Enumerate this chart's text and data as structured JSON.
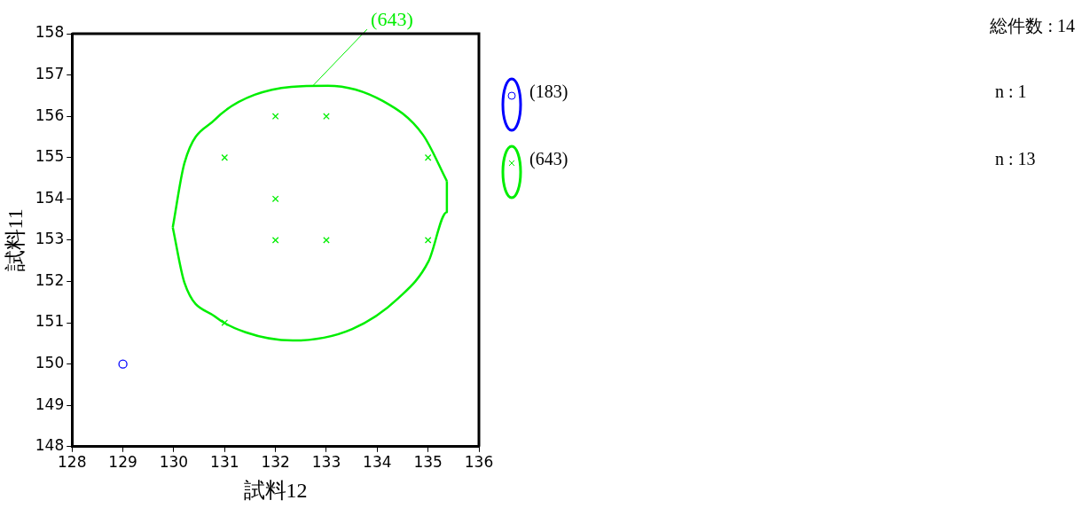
{
  "chart_data": {
    "type": "scatter",
    "xlabel": "試料12",
    "ylabel": "試料11",
    "xlim": [
      128,
      136
    ],
    "xticks": [
      128,
      129,
      130,
      131,
      132,
      133,
      134,
      135,
      136
    ],
    "ylim": [
      148,
      158
    ],
    "yticks": [
      148,
      149,
      150,
      151,
      152,
      153,
      154,
      155,
      156,
      157,
      158
    ],
    "grid": false,
    "legend": "right",
    "series": [
      {
        "type": "line",
        "color": "#00ee00",
        "marker": "none",
        "x": [
          129.98,
          130.21,
          130.81,
          131.59,
          133.03,
          134.11,
          134.9,
          135.37
        ],
        "values": [
          153.31,
          154.87,
          155.92,
          156.52,
          156.74,
          156.37,
          155.55,
          154.43
        ]
      },
      {
        "type": "line",
        "color": "#00ee00",
        "marker": "none",
        "x": [
          129.98,
          130.21,
          130.81,
          131.41,
          132.34,
          133.51,
          134.41,
          135.01,
          135.37,
          135.37
        ],
        "values": [
          153.31,
          151.97,
          151.15,
          150.77,
          150.57,
          150.85,
          151.59,
          152.49,
          153.68,
          154.43
        ]
      },
      {
        "name": "(183)",
        "color": "#0000ff",
        "marker": "circle",
        "x": [
          129
        ],
        "values": [
          150
        ]
      },
      {
        "name": "(643)",
        "color": "#00ee00",
        "marker": "cross",
        "x": [
          132,
          133,
          131,
          135,
          132,
          132,
          133,
          135,
          131
        ],
        "values": [
          156,
          156,
          155,
          155,
          154,
          153,
          153,
          153,
          151
        ]
      }
    ],
    "annotations": [
      {
        "text": "(643)",
        "x": 132.72,
        "y": 156.72
      },
      "総件数 : 14",
      "n : 1",
      "n : 13"
    ]
  }
}
